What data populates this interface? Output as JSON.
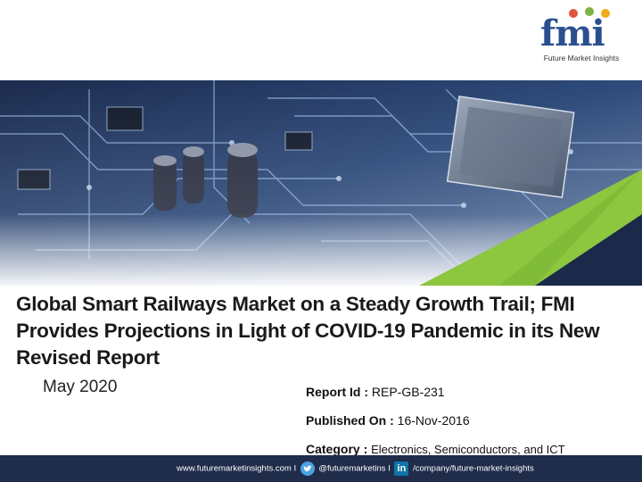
{
  "logo": {
    "mark": "fmi",
    "tagline": "Future Market Insights",
    "dot_colors": [
      "#e0563b",
      "#7cb342",
      "#f2a81d"
    ],
    "mark_color": "#2a4f8f"
  },
  "hero": {
    "description_icon": "circuit-board-image",
    "accent_green": "#8dc63f",
    "accent_dark": "#1b2a4a"
  },
  "title": "Global Smart Railways Market on a Steady Growth Trail; FMI Provides Projections in Light of COVID-19 Pandemic in its New Revised Report",
  "date": "May 2020",
  "meta": {
    "report_id_label": "Report Id :",
    "report_id_value": "REP-GB-231",
    "published_label": "Published On :",
    "published_value": "16-Nov-2016",
    "category_label": "Category :",
    "category_value": "Electronics, Semiconductors, and ICT"
  },
  "footer": {
    "website": "www.futuremarketinsights.com I",
    "twitter_handle": "@futuremarketins I",
    "linkedin_path": "/company/future-market-insights",
    "twitter_icon": "twitter-icon",
    "linkedin_icon": "linkedin-icon",
    "linkedin_glyph": "in",
    "bg_color": "#1f2c4a"
  }
}
